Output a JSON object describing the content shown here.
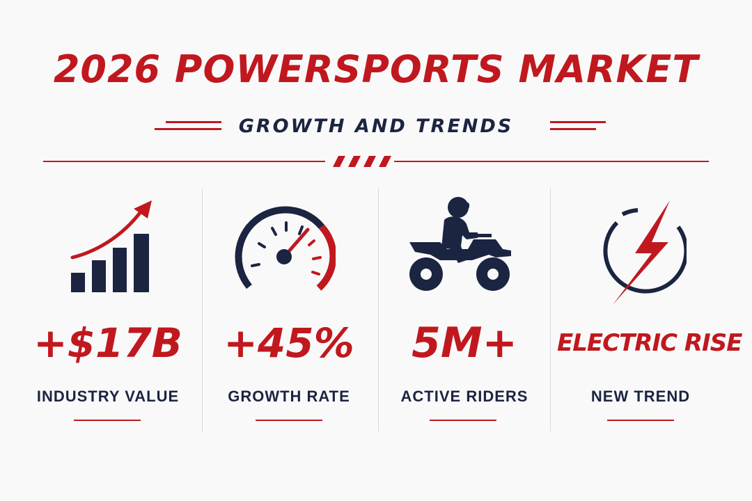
{
  "title": "2026 POWERSPORTS MARKET",
  "subtitle": "GROWTH AND TRENDS",
  "colors": {
    "accent_red": "#c0181e",
    "navy": "#1b2440",
    "background": "#f9f9fa"
  },
  "stats": [
    {
      "icon": "bar-chart-growth-icon",
      "value": "+$17B",
      "label": "INDUSTRY VALUE"
    },
    {
      "icon": "speedometer-icon",
      "value": "+45%",
      "label": "GROWTH RATE"
    },
    {
      "icon": "atv-rider-icon",
      "value": "5M+",
      "label": "ACTIVE RIDERS"
    },
    {
      "icon": "lightning-bolt-icon",
      "value": "ELECTRIC RISE",
      "label": "NEW TREND"
    }
  ]
}
